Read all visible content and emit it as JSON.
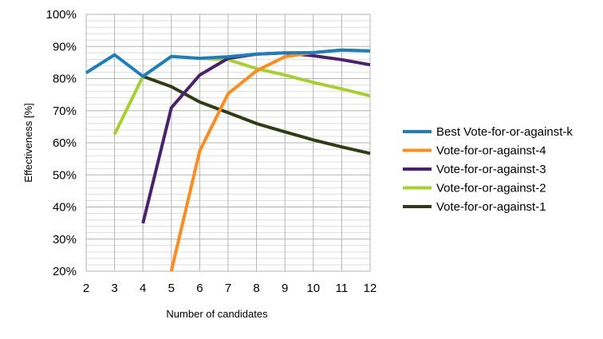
{
  "chart_data": {
    "type": "line",
    "title": "",
    "xlabel": "Number of candidates",
    "ylabel": "Effectiveness [%]",
    "x": [
      2,
      3,
      4,
      5,
      6,
      7,
      8,
      9,
      10,
      11,
      12
    ],
    "xlim": [
      2,
      12
    ],
    "ylim": [
      20,
      100
    ],
    "yticks": [
      20,
      30,
      40,
      50,
      60,
      70,
      80,
      90,
      100
    ],
    "ytick_suffix": "%",
    "grid": true,
    "minor_grid": true,
    "legend_position": "right",
    "series": [
      {
        "name": "Best Vote-for-or-against-k",
        "color": "#1a7fc1",
        "points": [
          [
            2,
            81.8
          ],
          [
            3,
            87.4
          ],
          [
            4,
            80.7
          ],
          [
            5,
            86.9
          ],
          [
            6,
            86.3
          ],
          [
            7,
            86.8
          ],
          [
            8,
            87.6
          ],
          [
            9,
            88.0
          ],
          [
            10,
            88.1
          ],
          [
            11,
            88.9
          ],
          [
            12,
            88.6
          ]
        ]
      },
      {
        "name": "Vote-for-or-against-4",
        "color": "#ff8c1a",
        "points": [
          [
            5,
            20.0
          ],
          [
            6,
            57.5
          ],
          [
            7,
            75.3
          ],
          [
            8,
            82.4
          ],
          [
            9,
            86.8
          ],
          [
            10,
            88.1
          ],
          [
            11,
            88.9
          ],
          [
            12,
            88.6
          ]
        ]
      },
      {
        "name": "Vote-for-or-against-3",
        "color": "#4b2070",
        "points": [
          [
            4,
            34.9
          ],
          [
            5,
            70.9
          ],
          [
            6,
            81.1
          ],
          [
            7,
            86.3
          ],
          [
            8,
            87.6
          ],
          [
            9,
            88.0
          ],
          [
            10,
            87.1
          ],
          [
            11,
            85.9
          ],
          [
            12,
            84.3
          ]
        ]
      },
      {
        "name": "Vote-for-or-against-2",
        "color": "#a6d12b",
        "points": [
          [
            3,
            62.6
          ],
          [
            4,
            80.7
          ],
          [
            5,
            86.9
          ],
          [
            6,
            86.3
          ],
          [
            7,
            85.9
          ],
          [
            8,
            83.1
          ],
          [
            9,
            81.1
          ],
          [
            10,
            78.8
          ],
          [
            11,
            76.8
          ],
          [
            12,
            74.6
          ]
        ]
      },
      {
        "name": "Vote-for-or-against-1",
        "color": "#2f3d12",
        "points": [
          [
            4,
            80.7
          ],
          [
            5,
            77.5
          ],
          [
            6,
            72.7
          ],
          [
            7,
            69.4
          ],
          [
            8,
            66.0
          ],
          [
            9,
            63.4
          ],
          [
            10,
            60.9
          ],
          [
            11,
            58.7
          ],
          [
            12,
            56.7
          ]
        ]
      }
    ]
  }
}
